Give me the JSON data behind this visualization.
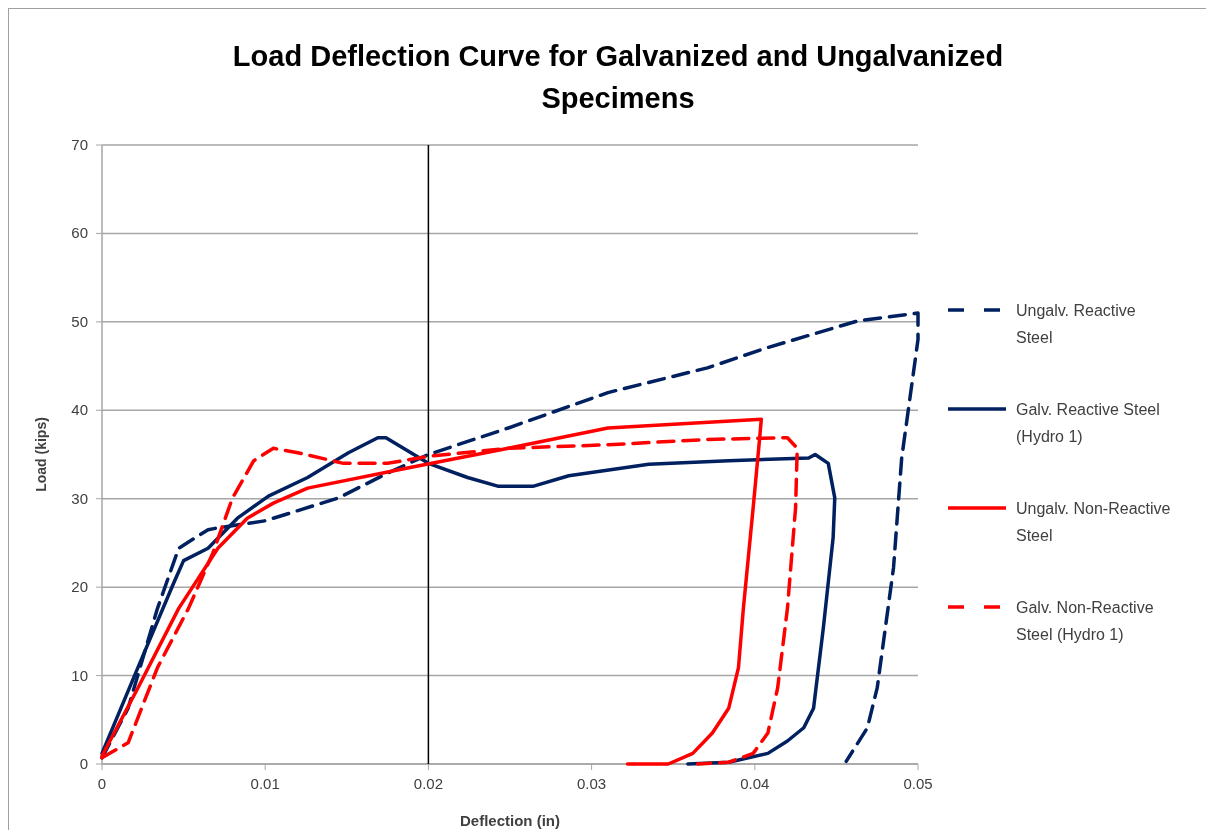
{
  "chart_data": {
    "type": "line",
    "title": "Load Deflection Curve for Galvanized and Ungalvanized Specimens",
    "xlabel": "Deflection (in)",
    "ylabel": "Load (kips)",
    "xlim": [
      0,
      0.05
    ],
    "xticks": [
      0,
      0.01,
      0.02,
      0.03,
      0.04,
      0.05
    ],
    "ylim": [
      0,
      70
    ],
    "yticks": [
      0,
      10,
      20,
      30,
      40,
      50,
      60,
      70
    ],
    "grid": "y",
    "legend": "right",
    "marker": "none",
    "ref_lines": [
      {
        "axis": "x",
        "value": 0.02,
        "color": "#000000"
      }
    ],
    "series": [
      {
        "name": "Ungalv. Reactive Steel",
        "color": "#002060",
        "line_style": "dashed",
        "x": [
          0,
          0.0016,
          0.0034,
          0.0047,
          0.0065,
          0.0071,
          0.01,
          0.0145,
          0.0175,
          0.02,
          0.0249,
          0.031,
          0.0371,
          0.0408,
          0.0463,
          0.05,
          0.05,
          0.049,
          0.0485,
          0.0475,
          0.0469,
          0.0456
        ],
        "values": [
          0.7,
          6.3,
          17.6,
          24.4,
          26.5,
          26.7,
          27.5,
          30.1,
          32.9,
          35,
          38,
          42,
          44.8,
          47.1,
          50.1,
          51,
          48,
          34.6,
          22.2,
          8.6,
          4.1,
          0.3
        ]
      },
      {
        "name": "Galv. Reactive Steel (Hydro 1)",
        "color": "#002060",
        "line_style": "solid",
        "x": [
          0,
          0.0022,
          0.0044,
          0.005,
          0.0065,
          0.0083,
          0.0102,
          0.0126,
          0.0151,
          0.0169,
          0.0174,
          0.02,
          0.0224,
          0.0243,
          0.0264,
          0.0286,
          0.0335,
          0.0384,
          0.0433,
          0.0437,
          0.0445,
          0.0449,
          0.0448,
          0.0442,
          0.0436,
          0.043,
          0.042,
          0.0408,
          0.0384,
          0.0359
        ],
        "values": [
          1.2,
          10.9,
          20.5,
          23,
          24.4,
          27.8,
          30.3,
          32.4,
          35.2,
          36.9,
          36.9,
          34,
          32.4,
          31.4,
          31.4,
          32.6,
          33.9,
          34.3,
          34.6,
          35,
          34,
          30.1,
          25.6,
          15.4,
          6.3,
          4.1,
          2.6,
          1.2,
          0.2,
          0
        ]
      },
      {
        "name": "Ungalv. Non-Reactive Steel",
        "color": "#ff0000",
        "line_style": "solid",
        "x": [
          0,
          0.0022,
          0.0047,
          0.0071,
          0.0089,
          0.0105,
          0.0126,
          0.0188,
          0.0249,
          0.031,
          0.0404,
          0.0403,
          0.0399,
          0.0393,
          0.039,
          0.0384,
          0.0374,
          0.0362,
          0.0347,
          0.0322
        ],
        "values": [
          0.9,
          8.6,
          17.6,
          24.4,
          27.8,
          29.5,
          31.2,
          33.5,
          35.7,
          38,
          39,
          36.9,
          29,
          17.6,
          10.9,
          6.3,
          3.5,
          1.2,
          0,
          0
        ]
      },
      {
        "name": "Galv. Non-Reactive Steel (Hydro 1)",
        "color": "#ff0000",
        "line_style": "dashed",
        "x": [
          0,
          0.0016,
          0.0034,
          0.0053,
          0.0068,
          0.008,
          0.0093,
          0.0105,
          0.012,
          0.0148,
          0.0175,
          0.02,
          0.0249,
          0.031,
          0.0371,
          0.042,
          0.0426,
          0.0425,
          0.042,
          0.0414,
          0.0408,
          0.0399,
          0.0384,
          0.0365
        ],
        "values": [
          0.7,
          2.4,
          10.9,
          17.6,
          23.9,
          30.1,
          34.3,
          35.7,
          35.2,
          34,
          34,
          34.8,
          35.7,
          36.1,
          36.7,
          36.9,
          35.7,
          29,
          17.6,
          8.6,
          3.5,
          1.2,
          0.2,
          0
        ]
      }
    ]
  }
}
